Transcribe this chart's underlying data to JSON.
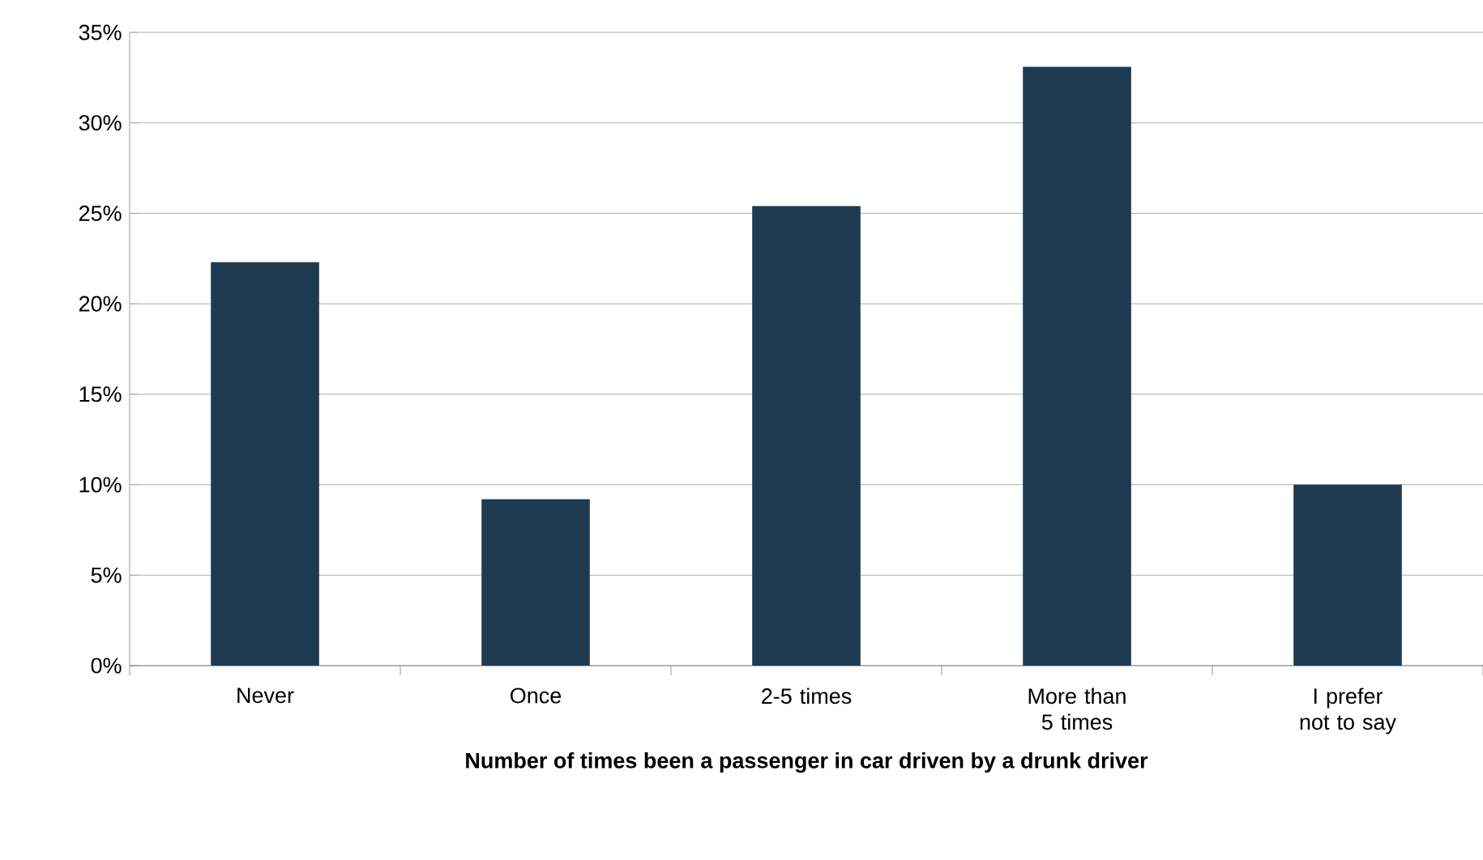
{
  "chart_data": {
    "type": "bar",
    "xlabel": "**Number of times been a passenger in car driven by a drunk driver**",
    "categories": [
      "Never",
      "Once",
      "2-5 times",
      "More than 5 times",
      "I prefer not to say"
    ],
    "values": [
      22.3,
      9.2,
      25.4,
      33.1,
      10.0
    ],
    "color": "#1f3b52",
    "ylim": [
      0,
      35
    ],
    "yticks": [
      {
        "value": 0,
        "label": "0%"
      },
      {
        "value": 5,
        "label": "5%"
      },
      {
        "value": 10,
        "label": "10%"
      },
      {
        "value": 15,
        "label": "15%"
      },
      {
        "value": 20,
        "label": "20%"
      },
      {
        "value": 25,
        "label": "25%"
      },
      {
        "value": 30,
        "label": "30%"
      },
      {
        "value": 35,
        "label": "35%"
      }
    ],
    "grid": "y"
  }
}
